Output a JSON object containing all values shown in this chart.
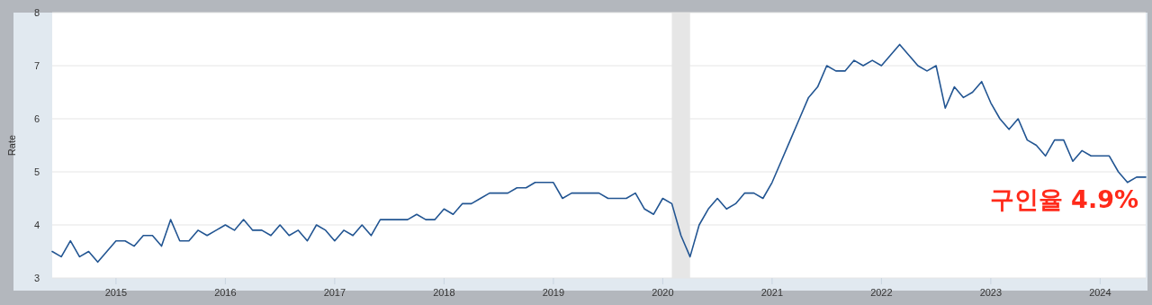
{
  "chart_data": {
    "type": "line",
    "ylabel": "Rate",
    "x": [
      "2014-06",
      "2014-07",
      "2014-08",
      "2014-09",
      "2014-10",
      "2014-11",
      "2014-12",
      "2015-01",
      "2015-02",
      "2015-03",
      "2015-04",
      "2015-05",
      "2015-06",
      "2015-07",
      "2015-08",
      "2015-09",
      "2015-10",
      "2015-11",
      "2015-12",
      "2016-01",
      "2016-02",
      "2016-03",
      "2016-04",
      "2016-05",
      "2016-06",
      "2016-07",
      "2016-08",
      "2016-09",
      "2016-10",
      "2016-11",
      "2016-12",
      "2017-01",
      "2017-02",
      "2017-03",
      "2017-04",
      "2017-05",
      "2017-06",
      "2017-07",
      "2017-08",
      "2017-09",
      "2017-10",
      "2017-11",
      "2017-12",
      "2018-01",
      "2018-02",
      "2018-03",
      "2018-04",
      "2018-05",
      "2018-06",
      "2018-07",
      "2018-08",
      "2018-09",
      "2018-10",
      "2018-11",
      "2018-12",
      "2019-01",
      "2019-02",
      "2019-03",
      "2019-04",
      "2019-05",
      "2019-06",
      "2019-07",
      "2019-08",
      "2019-09",
      "2019-10",
      "2019-11",
      "2019-12",
      "2020-01",
      "2020-02",
      "2020-03",
      "2020-04",
      "2020-05",
      "2020-06",
      "2020-07",
      "2020-08",
      "2020-09",
      "2020-10",
      "2020-11",
      "2020-12",
      "2021-01",
      "2021-02",
      "2021-03",
      "2021-04",
      "2021-05",
      "2021-06",
      "2021-07",
      "2021-08",
      "2021-09",
      "2021-10",
      "2021-11",
      "2021-12",
      "2022-01",
      "2022-02",
      "2022-03",
      "2022-04",
      "2022-05",
      "2022-06",
      "2022-07",
      "2022-08",
      "2022-09",
      "2022-10",
      "2022-11",
      "2022-12",
      "2023-01",
      "2023-02",
      "2023-03",
      "2023-04",
      "2023-05",
      "2023-06",
      "2023-07",
      "2023-08",
      "2023-09",
      "2023-10",
      "2023-11",
      "2023-12",
      "2024-01",
      "2024-02",
      "2024-03",
      "2024-04",
      "2024-05",
      "2024-06"
    ],
    "series": [
      {
        "color": "#225592",
        "values": [
          3.5,
          3.4,
          3.7,
          3.4,
          3.5,
          3.3,
          3.5,
          3.7,
          3.7,
          3.6,
          3.8,
          3.8,
          3.6,
          4.1,
          3.7,
          3.7,
          3.9,
          3.8,
          3.9,
          4.0,
          3.9,
          4.1,
          3.9,
          3.9,
          3.8,
          4.0,
          3.8,
          3.9,
          3.7,
          4.0,
          3.9,
          3.7,
          3.9,
          3.8,
          4.0,
          3.8,
          4.1,
          4.1,
          4.1,
          4.1,
          4.2,
          4.1,
          4.1,
          4.3,
          4.2,
          4.4,
          4.4,
          4.5,
          4.6,
          4.6,
          4.6,
          4.7,
          4.7,
          4.8,
          4.8,
          4.8,
          4.5,
          4.6,
          4.6,
          4.6,
          4.6,
          4.5,
          4.5,
          4.5,
          4.6,
          4.3,
          4.2,
          4.5,
          4.4,
          3.8,
          3.4,
          4.0,
          4.3,
          4.5,
          4.3,
          4.4,
          4.6,
          4.6,
          4.5,
          4.8,
          5.2,
          5.6,
          6.0,
          6.4,
          6.6,
          7.0,
          6.9,
          6.9,
          7.1,
          7.0,
          7.1,
          7.0,
          7.2,
          7.4,
          7.2,
          7.0,
          6.9,
          7.0,
          6.2,
          6.6,
          6.4,
          6.5,
          6.7,
          6.3,
          6.0,
          5.8,
          6.0,
          5.6,
          5.5,
          5.3,
          5.6,
          5.6,
          5.2,
          5.4,
          5.3,
          5.3,
          5.3,
          5.0,
          4.8,
          4.9,
          4.9
        ]
      }
    ],
    "xlim": [
      "2014-06",
      "2024-06"
    ],
    "ylim": [
      3,
      8
    ],
    "xticks": [
      "2015",
      "2016",
      "2017",
      "2018",
      "2019",
      "2020",
      "2021",
      "2022",
      "2023",
      "2024"
    ],
    "yticks": [
      3,
      4,
      5,
      6,
      7,
      8
    ],
    "grid": "y",
    "marker": "none",
    "line_style": "solid",
    "bands": [
      {
        "axis": "x",
        "from": "2020-02",
        "to": "2020-04",
        "color": "#e6e6e6"
      }
    ],
    "annotations": [
      "구인율 4.9%"
    ]
  }
}
